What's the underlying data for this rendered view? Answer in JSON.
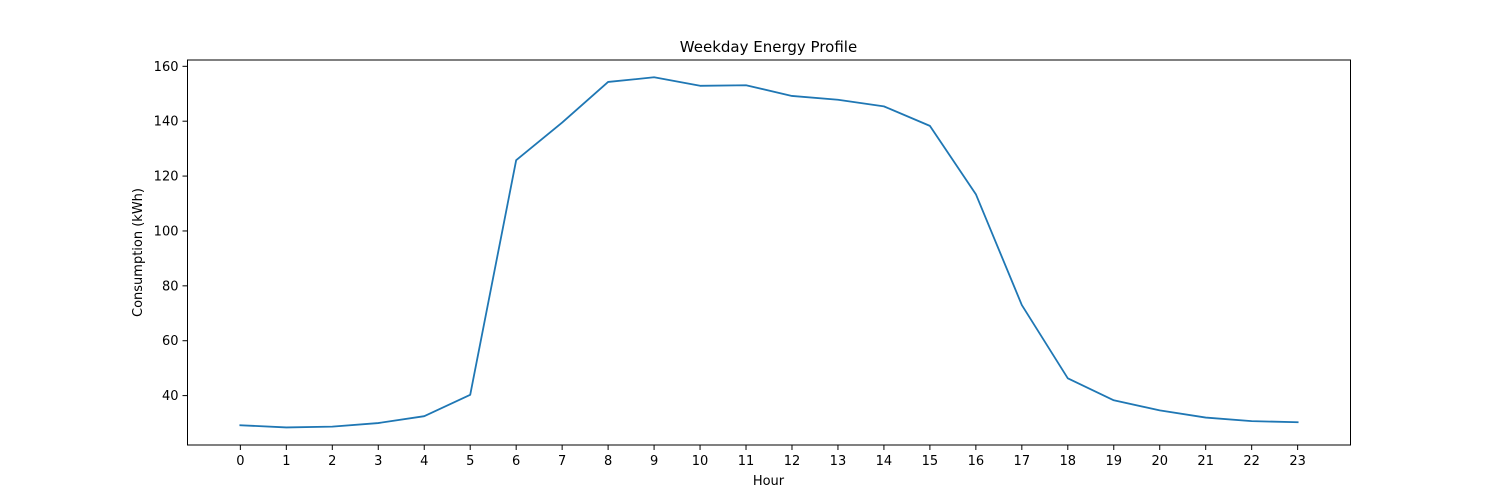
{
  "chart_data": {
    "type": "line",
    "title": "Weekday Energy Profile",
    "xlabel": "Hour",
    "ylabel": "Consumption (kWh)",
    "x": [
      0,
      1,
      2,
      3,
      4,
      5,
      6,
      7,
      8,
      9,
      10,
      11,
      12,
      13,
      14,
      15,
      16,
      17,
      18,
      19,
      20,
      21,
      22,
      23
    ],
    "x_tick_labels": [
      "0",
      "1",
      "2",
      "3",
      "4",
      "5",
      "6",
      "7",
      "8",
      "9",
      "10",
      "11",
      "12",
      "13",
      "14",
      "15",
      "16",
      "17",
      "18",
      "19",
      "20",
      "21",
      "22",
      "23"
    ],
    "series": [
      {
        "values": [
          29.2,
          28.4,
          28.7,
          30.0,
          32.5,
          40.3,
          125.8,
          139.5,
          154.3,
          156.0,
          152.9,
          153.1,
          149.2,
          147.8,
          145.4,
          138.3,
          113.4,
          73.0,
          46.3,
          38.3,
          34.6,
          32.0,
          30.7,
          30.3
        ],
        "color": "#1f77b4"
      }
    ],
    "xlim": [
      -1.15,
      24.15
    ],
    "ylim": [
      22.0,
      162.3
    ],
    "y_ticks": [
      40,
      60,
      80,
      100,
      120,
      140,
      160
    ],
    "y_tick_labels": [
      "40",
      "60",
      "80",
      "100",
      "120",
      "140",
      "160"
    ],
    "grid": false,
    "legend": "none"
  }
}
